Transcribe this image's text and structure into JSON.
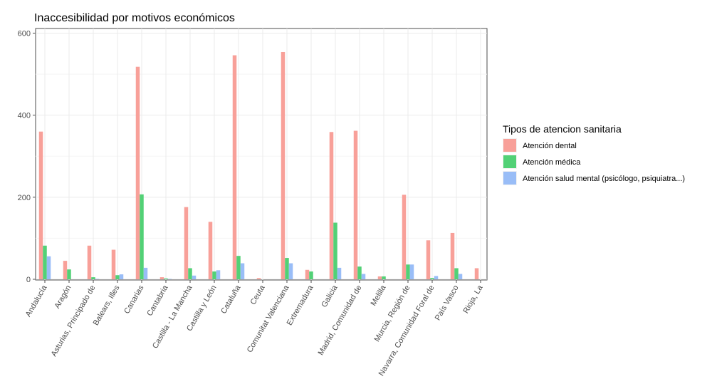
{
  "chart_data": {
    "type": "bar",
    "title": "Inaccesibilidad por motivos económicos",
    "xlabel": "",
    "ylabel": "",
    "ylim": [
      0,
      600
    ],
    "yticks": [
      0,
      200,
      400,
      600
    ],
    "grid": true,
    "legend_position": "right",
    "legend_title": "Tipos de atencion sanitaria",
    "categories": [
      "Andalucía",
      "Aragón",
      "Asturias, Principado de",
      "Balears, Illes",
      "Canarias",
      "Cantabria",
      "Castilla - La Mancha",
      "Castilla y León",
      "Cataluña",
      "Ceuta",
      "Comunitat Valenciana",
      "Extremadura",
      "Galicia",
      "Madrid, Comunidad de",
      "Melilla",
      "Murcia, Región de",
      "Navarra, Comunidad Foral de",
      "País Vasco",
      "Rioja, La"
    ],
    "series": [
      {
        "name": "Atención dental",
        "color": "#F8A099",
        "values": [
          360,
          45,
          82,
          72,
          518,
          5,
          176,
          140,
          546,
          3,
          554,
          23,
          359,
          362,
          7,
          206,
          95,
          113,
          27
        ]
      },
      {
        "name": "Atención médica",
        "color": "#52D176",
        "values": [
          82,
          24,
          5,
          10,
          207,
          2,
          27,
          19,
          57,
          0,
          52,
          19,
          138,
          31,
          7,
          36,
          3,
          27,
          0
        ]
      },
      {
        "name": "Atención salud mental (psicólogo, psiquiatra...)",
        "color": "#99BDF7",
        "values": [
          56,
          0,
          1,
          12,
          28,
          1,
          9,
          22,
          39,
          0,
          39,
          0,
          28,
          13,
          0,
          36,
          8,
          13,
          0
        ]
      }
    ]
  }
}
